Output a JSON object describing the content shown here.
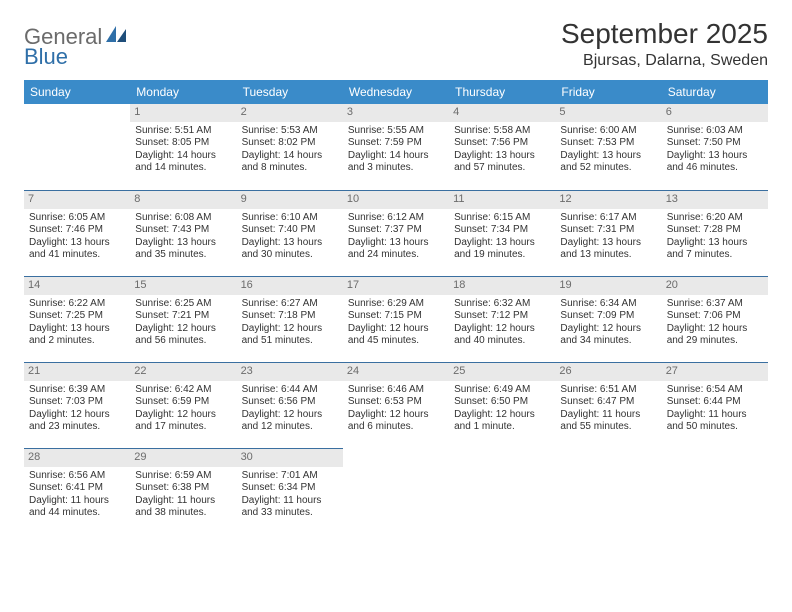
{
  "logo": {
    "part1": "General",
    "part2": "Blue"
  },
  "title": "September 2025",
  "location": "Bjursas, Dalarna, Sweden",
  "colors": {
    "header_bg": "#3a8bc9",
    "header_text": "#ffffff",
    "daynum_bg": "#e9e9e9",
    "daynum_text": "#6c6c6c",
    "rule": "#3a6fa0",
    "body_text": "#333333",
    "logo_gray": "#6b6b6b",
    "logo_blue": "#2f6fa8"
  },
  "day_headers": [
    "Sunday",
    "Monday",
    "Tuesday",
    "Wednesday",
    "Thursday",
    "Friday",
    "Saturday"
  ],
  "weeks": [
    [
      null,
      {
        "n": "1",
        "sr": "Sunrise: 5:51 AM",
        "ss": "Sunset: 8:05 PM",
        "dl": "Daylight: 14 hours and 14 minutes."
      },
      {
        "n": "2",
        "sr": "Sunrise: 5:53 AM",
        "ss": "Sunset: 8:02 PM",
        "dl": "Daylight: 14 hours and 8 minutes."
      },
      {
        "n": "3",
        "sr": "Sunrise: 5:55 AM",
        "ss": "Sunset: 7:59 PM",
        "dl": "Daylight: 14 hours and 3 minutes."
      },
      {
        "n": "4",
        "sr": "Sunrise: 5:58 AM",
        "ss": "Sunset: 7:56 PM",
        "dl": "Daylight: 13 hours and 57 minutes."
      },
      {
        "n": "5",
        "sr": "Sunrise: 6:00 AM",
        "ss": "Sunset: 7:53 PM",
        "dl": "Daylight: 13 hours and 52 minutes."
      },
      {
        "n": "6",
        "sr": "Sunrise: 6:03 AM",
        "ss": "Sunset: 7:50 PM",
        "dl": "Daylight: 13 hours and 46 minutes."
      }
    ],
    [
      {
        "n": "7",
        "sr": "Sunrise: 6:05 AM",
        "ss": "Sunset: 7:46 PM",
        "dl": "Daylight: 13 hours and 41 minutes."
      },
      {
        "n": "8",
        "sr": "Sunrise: 6:08 AM",
        "ss": "Sunset: 7:43 PM",
        "dl": "Daylight: 13 hours and 35 minutes."
      },
      {
        "n": "9",
        "sr": "Sunrise: 6:10 AM",
        "ss": "Sunset: 7:40 PM",
        "dl": "Daylight: 13 hours and 30 minutes."
      },
      {
        "n": "10",
        "sr": "Sunrise: 6:12 AM",
        "ss": "Sunset: 7:37 PM",
        "dl": "Daylight: 13 hours and 24 minutes."
      },
      {
        "n": "11",
        "sr": "Sunrise: 6:15 AM",
        "ss": "Sunset: 7:34 PM",
        "dl": "Daylight: 13 hours and 19 minutes."
      },
      {
        "n": "12",
        "sr": "Sunrise: 6:17 AM",
        "ss": "Sunset: 7:31 PM",
        "dl": "Daylight: 13 hours and 13 minutes."
      },
      {
        "n": "13",
        "sr": "Sunrise: 6:20 AM",
        "ss": "Sunset: 7:28 PM",
        "dl": "Daylight: 13 hours and 7 minutes."
      }
    ],
    [
      {
        "n": "14",
        "sr": "Sunrise: 6:22 AM",
        "ss": "Sunset: 7:25 PM",
        "dl": "Daylight: 13 hours and 2 minutes."
      },
      {
        "n": "15",
        "sr": "Sunrise: 6:25 AM",
        "ss": "Sunset: 7:21 PM",
        "dl": "Daylight: 12 hours and 56 minutes."
      },
      {
        "n": "16",
        "sr": "Sunrise: 6:27 AM",
        "ss": "Sunset: 7:18 PM",
        "dl": "Daylight: 12 hours and 51 minutes."
      },
      {
        "n": "17",
        "sr": "Sunrise: 6:29 AM",
        "ss": "Sunset: 7:15 PM",
        "dl": "Daylight: 12 hours and 45 minutes."
      },
      {
        "n": "18",
        "sr": "Sunrise: 6:32 AM",
        "ss": "Sunset: 7:12 PM",
        "dl": "Daylight: 12 hours and 40 minutes."
      },
      {
        "n": "19",
        "sr": "Sunrise: 6:34 AM",
        "ss": "Sunset: 7:09 PM",
        "dl": "Daylight: 12 hours and 34 minutes."
      },
      {
        "n": "20",
        "sr": "Sunrise: 6:37 AM",
        "ss": "Sunset: 7:06 PM",
        "dl": "Daylight: 12 hours and 29 minutes."
      }
    ],
    [
      {
        "n": "21",
        "sr": "Sunrise: 6:39 AM",
        "ss": "Sunset: 7:03 PM",
        "dl": "Daylight: 12 hours and 23 minutes."
      },
      {
        "n": "22",
        "sr": "Sunrise: 6:42 AM",
        "ss": "Sunset: 6:59 PM",
        "dl": "Daylight: 12 hours and 17 minutes."
      },
      {
        "n": "23",
        "sr": "Sunrise: 6:44 AM",
        "ss": "Sunset: 6:56 PM",
        "dl": "Daylight: 12 hours and 12 minutes."
      },
      {
        "n": "24",
        "sr": "Sunrise: 6:46 AM",
        "ss": "Sunset: 6:53 PM",
        "dl": "Daylight: 12 hours and 6 minutes."
      },
      {
        "n": "25",
        "sr": "Sunrise: 6:49 AM",
        "ss": "Sunset: 6:50 PM",
        "dl": "Daylight: 12 hours and 1 minute."
      },
      {
        "n": "26",
        "sr": "Sunrise: 6:51 AM",
        "ss": "Sunset: 6:47 PM",
        "dl": "Daylight: 11 hours and 55 minutes."
      },
      {
        "n": "27",
        "sr": "Sunrise: 6:54 AM",
        "ss": "Sunset: 6:44 PM",
        "dl": "Daylight: 11 hours and 50 minutes."
      }
    ],
    [
      {
        "n": "28",
        "sr": "Sunrise: 6:56 AM",
        "ss": "Sunset: 6:41 PM",
        "dl": "Daylight: 11 hours and 44 minutes."
      },
      {
        "n": "29",
        "sr": "Sunrise: 6:59 AM",
        "ss": "Sunset: 6:38 PM",
        "dl": "Daylight: 11 hours and 38 minutes."
      },
      {
        "n": "30",
        "sr": "Sunrise: 7:01 AM",
        "ss": "Sunset: 6:34 PM",
        "dl": "Daylight: 11 hours and 33 minutes."
      },
      null,
      null,
      null,
      null
    ]
  ]
}
